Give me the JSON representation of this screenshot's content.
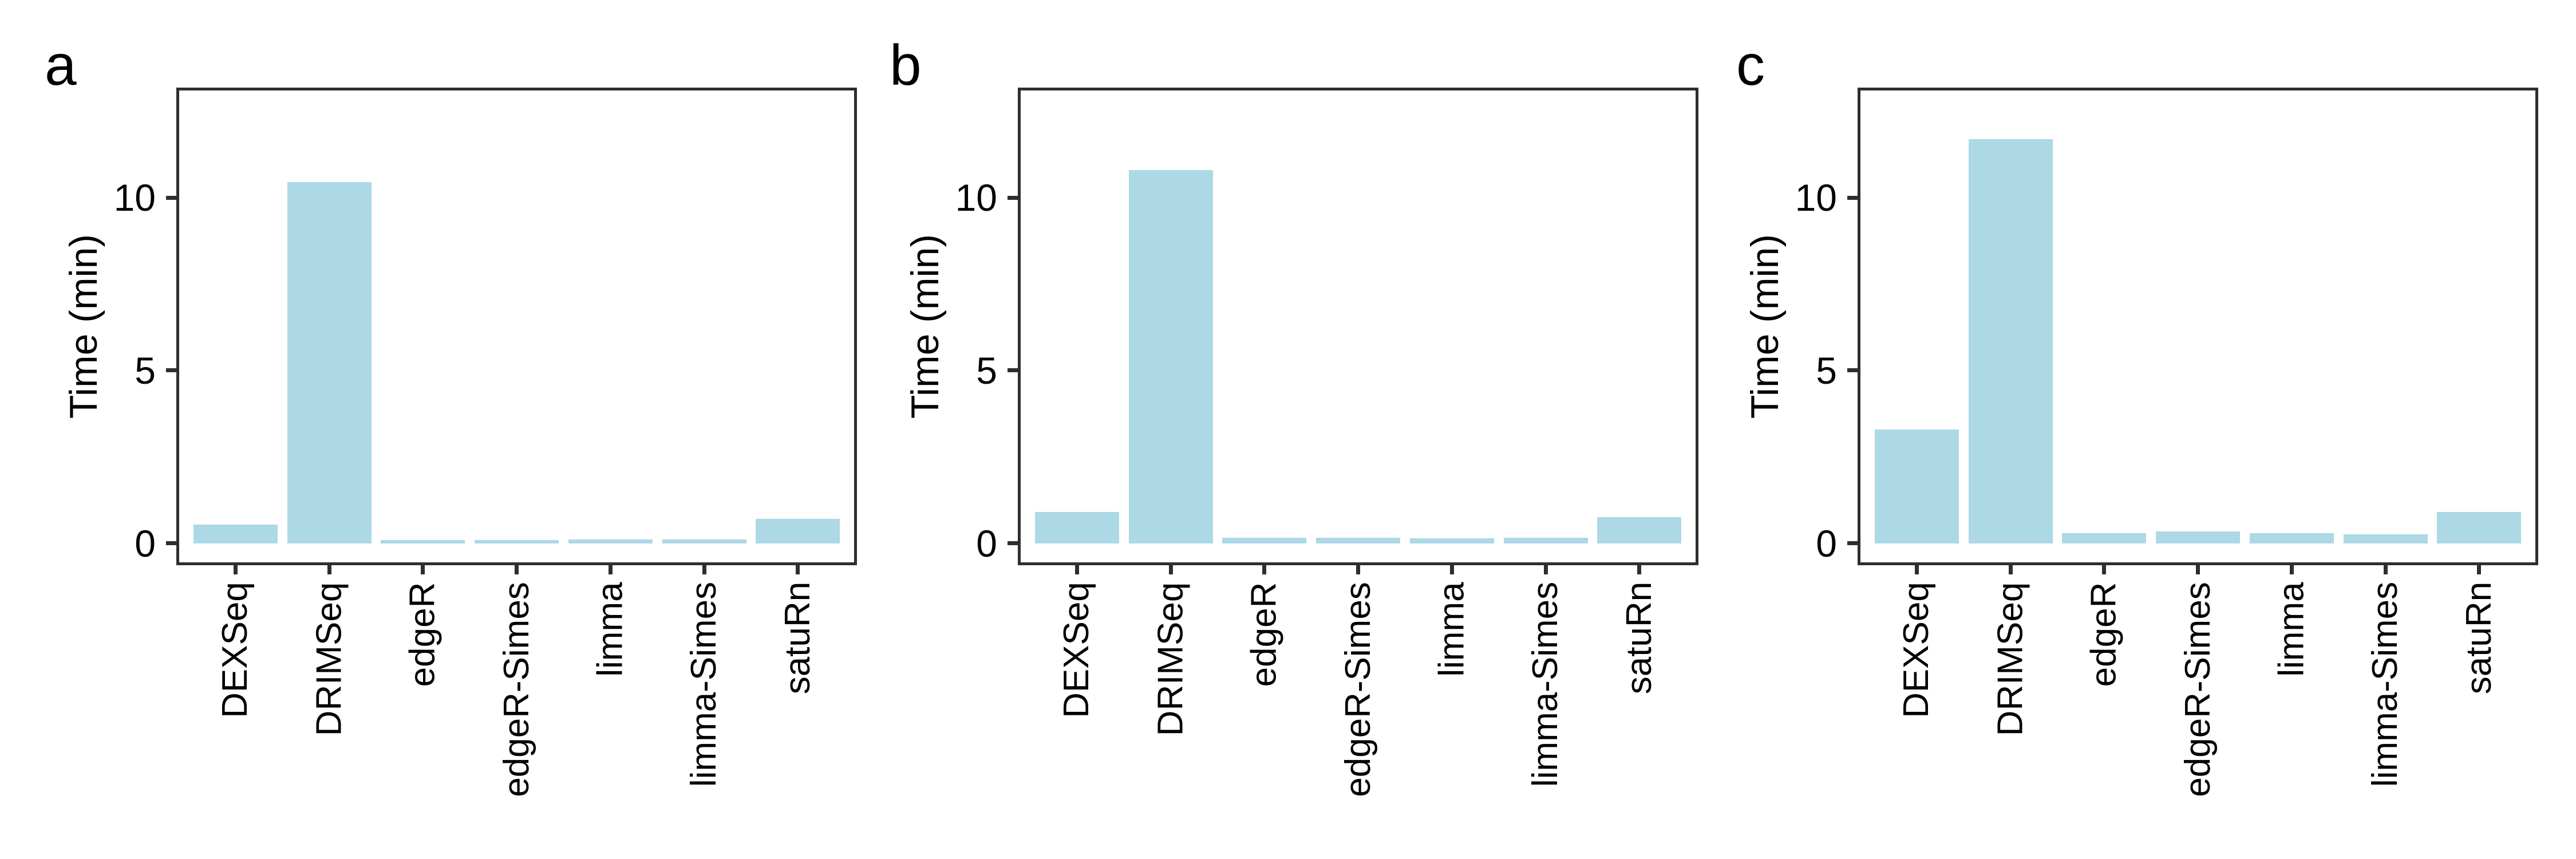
{
  "figure": {
    "background_color": "#ffffff",
    "text_color": "#000000",
    "panels": [
      {
        "label": "a",
        "chart_data": {
          "type": "bar",
          "title": "",
          "xlabel": "",
          "ylabel": "Time (min)",
          "categories": [
            "DEXSeq",
            "DRIMSeq",
            "edgeR",
            "edgeR-Simes",
            "limma",
            "limma-Simes",
            "satuRn"
          ],
          "values": [
            0.55,
            10.45,
            0.1,
            0.1,
            0.12,
            0.12,
            0.72
          ],
          "yticks": [
            0,
            5,
            10
          ],
          "ylim": [
            -0.55,
            13.1
          ],
          "xlim_categories": [
            0.4,
            7.6
          ],
          "bar_rel_width": 0.9,
          "grid": "off",
          "legend": "none",
          "bar_color": "#ADD8E6",
          "axis_color": "#2e2e2e"
        }
      },
      {
        "label": "b",
        "chart_data": {
          "type": "bar",
          "title": "",
          "xlabel": "",
          "ylabel": "Time (min)",
          "categories": [
            "DEXSeq",
            "DRIMSeq",
            "edgeR",
            "edgeR-Simes",
            "limma",
            "limma-Simes",
            "satuRn"
          ],
          "values": [
            0.91,
            10.8,
            0.16,
            0.16,
            0.15,
            0.16,
            0.77
          ],
          "yticks": [
            0,
            5,
            10
          ],
          "ylim": [
            -0.55,
            13.1
          ],
          "xlim_categories": [
            0.4,
            7.6
          ],
          "bar_rel_width": 0.9,
          "grid": "off",
          "legend": "none",
          "bar_color": "#ADD8E6",
          "axis_color": "#2e2e2e"
        }
      },
      {
        "label": "c",
        "chart_data": {
          "type": "bar",
          "title": "",
          "xlabel": "",
          "ylabel": "Time (min)",
          "categories": [
            "DEXSeq",
            "DRIMSeq",
            "edgeR",
            "edgeR-Simes",
            "limma",
            "limma-Simes",
            "satuRn"
          ],
          "values": [
            3.3,
            11.7,
            0.29,
            0.34,
            0.29,
            0.26,
            0.91
          ],
          "yticks": [
            0,
            5,
            10
          ],
          "ylim": [
            -0.55,
            13.1
          ],
          "xlim_categories": [
            0.4,
            7.6
          ],
          "bar_rel_width": 0.9,
          "grid": "off",
          "legend": "none",
          "bar_color": "#ADD8E6",
          "axis_color": "#2e2e2e"
        }
      }
    ]
  }
}
